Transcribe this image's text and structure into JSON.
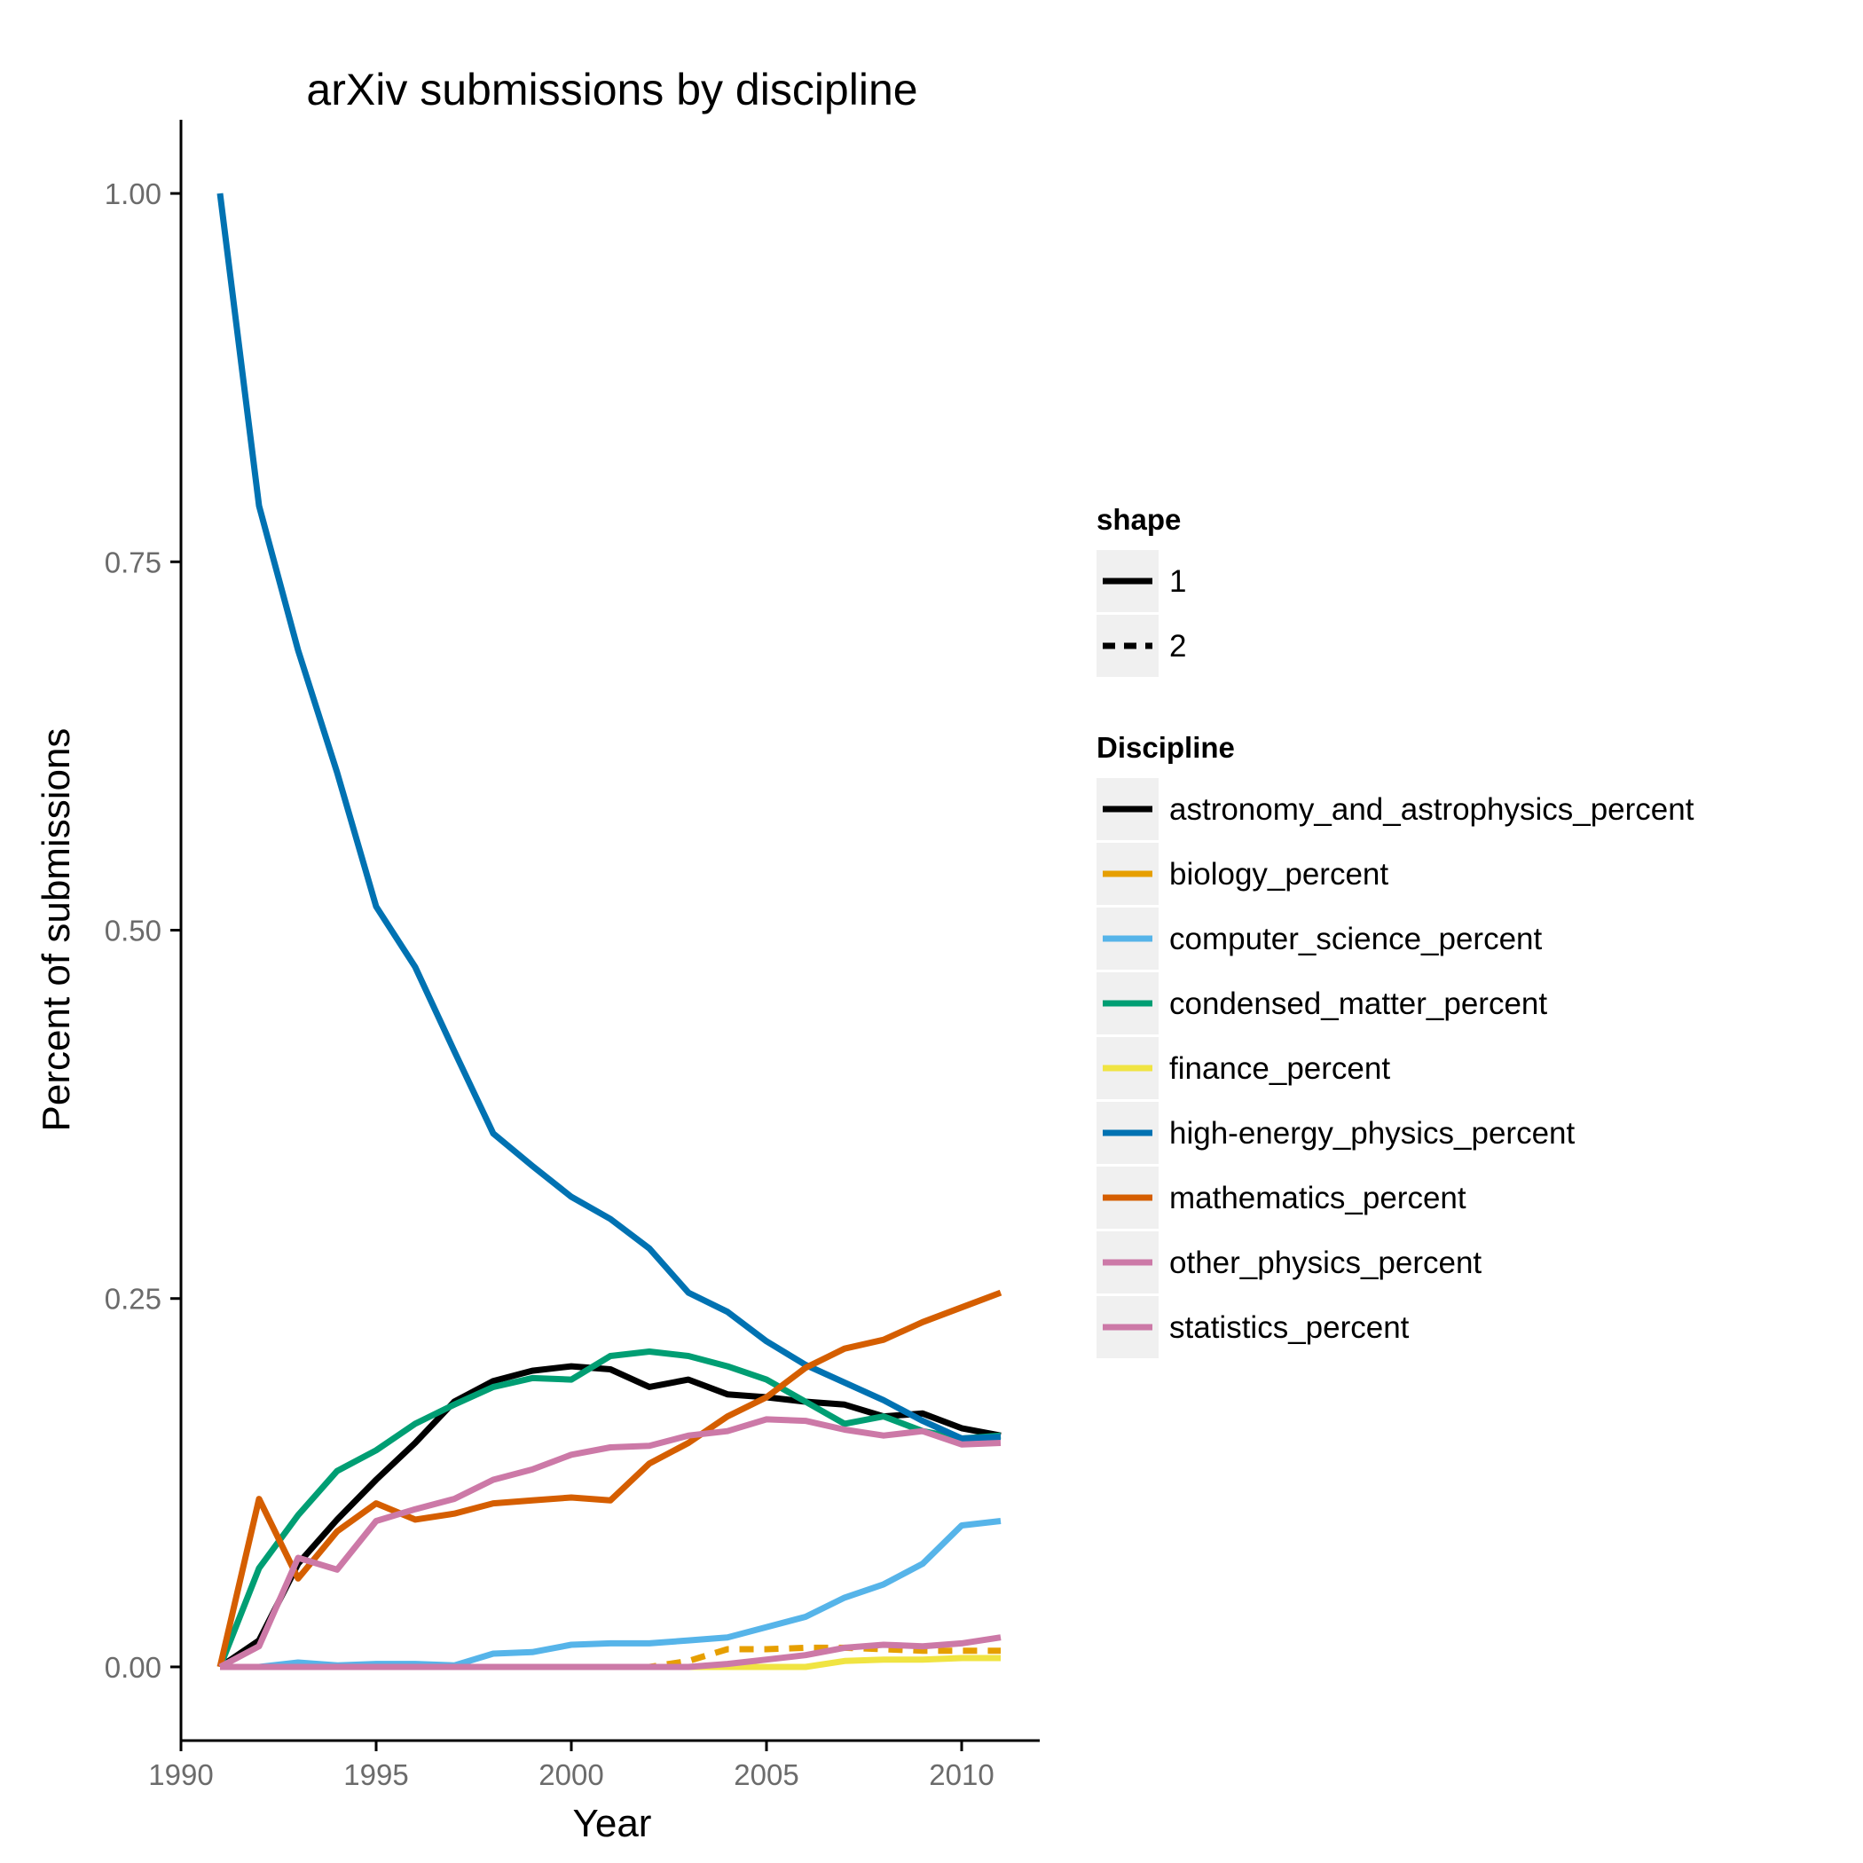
{
  "chart_data": {
    "type": "line",
    "title": "arXiv submissions by discipline",
    "xlabel": "Year",
    "ylabel": "Percent of submissions",
    "xlim": [
      1990,
      2012
    ],
    "ylim": [
      -0.05,
      1.05
    ],
    "x_ticks": [
      1990,
      1995,
      2000,
      2005,
      2010
    ],
    "x_tick_labels": [
      "1990",
      "1995",
      "2000",
      "2005",
      "2010"
    ],
    "y_ticks": [
      0,
      0.25,
      0.5,
      0.75,
      1.0
    ],
    "y_tick_labels": [
      "0.00",
      "0.25",
      "0.50",
      "0.75",
      "1.00"
    ],
    "grid": false,
    "legend_placement": "right",
    "x": [
      1991,
      1992,
      1993,
      1994,
      1995,
      1996,
      1997,
      1998,
      1999,
      2000,
      2001,
      2002,
      2003,
      2004,
      2005,
      2006,
      2007,
      2008,
      2009,
      2010,
      2011
    ],
    "shape_legend": {
      "title": "shape",
      "entries": [
        {
          "label": "1",
          "dash": "solid"
        },
        {
          "label": "2",
          "dash": "dashed"
        }
      ]
    },
    "discipline_legend_title": "Discipline",
    "series": [
      {
        "name": "astronomy_and_astrophysics_percent",
        "color": "#000000",
        "shape": "1",
        "values": [
          0.0,
          0.018,
          0.07,
          0.1,
          0.127,
          0.152,
          0.18,
          0.194,
          0.201,
          0.204,
          0.202,
          0.19,
          0.195,
          0.185,
          0.183,
          0.18,
          0.178,
          0.17,
          0.172,
          0.162,
          0.157
        ]
      },
      {
        "name": "biology_percent",
        "color": "#e69f00",
        "shape": "2",
        "values": [
          0,
          0,
          0,
          0,
          0,
          0,
          0,
          0,
          0,
          0,
          0,
          0,
          0.004,
          0.012,
          0.012,
          0.013,
          0.013,
          0.012,
          0.011,
          0.011,
          0.011
        ]
      },
      {
        "name": "computer_science_percent",
        "color": "#56b4e9",
        "shape": "1",
        "values": [
          0.0,
          0.0,
          0.003,
          0.001,
          0.002,
          0.002,
          0.001,
          0.009,
          0.01,
          0.015,
          0.016,
          0.016,
          0.018,
          0.02,
          0.027,
          0.034,
          0.047,
          0.056,
          0.07,
          0.096,
          0.099
        ]
      },
      {
        "name": "condensed_matter_percent",
        "color": "#009e73",
        "shape": "1",
        "values": [
          0.0,
          0.067,
          0.103,
          0.133,
          0.147,
          0.165,
          0.178,
          0.19,
          0.196,
          0.195,
          0.211,
          0.214,
          0.211,
          0.204,
          0.195,
          0.18,
          0.165,
          0.17,
          0.16,
          0.155,
          0.157
        ]
      },
      {
        "name": "finance_percent",
        "color": "#f0e442",
        "shape": "1",
        "values": [
          0,
          0,
          0,
          0,
          0,
          0,
          0,
          0,
          0,
          0,
          0,
          0,
          0,
          0,
          0,
          0,
          0.004,
          0.005,
          0.005,
          0.006,
          0.006
        ]
      },
      {
        "name": "high-energy_physics_percent",
        "color": "#0072b2",
        "shape": "1",
        "values": [
          1.0,
          0.788,
          0.69,
          0.607,
          0.516,
          0.475,
          0.418,
          0.362,
          0.34,
          0.319,
          0.304,
          0.284,
          0.254,
          0.241,
          0.221,
          0.205,
          0.193,
          0.181,
          0.167,
          0.155,
          0.156
        ]
      },
      {
        "name": "mathematics_percent",
        "color": "#d55e00",
        "shape": "1",
        "values": [
          0.0,
          0.114,
          0.06,
          0.092,
          0.111,
          0.1,
          0.104,
          0.111,
          0.113,
          0.115,
          0.113,
          0.138,
          0.152,
          0.17,
          0.183,
          0.203,
          0.216,
          0.222,
          0.234,
          0.244,
          0.254
        ]
      },
      {
        "name": "other_physics_percent",
        "color": "#cc79a7",
        "shape": "1",
        "values": [
          0.0,
          0.014,
          0.074,
          0.066,
          0.099,
          0.107,
          0.114,
          0.127,
          0.134,
          0.144,
          0.149,
          0.15,
          0.157,
          0.16,
          0.168,
          0.167,
          0.161,
          0.157,
          0.16,
          0.151,
          0.152
        ]
      },
      {
        "name": "statistics_percent",
        "color": "#cc79a7",
        "shape": "1",
        "values": [
          0,
          0,
          0,
          0,
          0,
          0,
          0,
          0,
          0,
          0,
          0,
          0,
          0,
          0.002,
          0.005,
          0.008,
          0.013,
          0.015,
          0.014,
          0.016,
          0.02
        ]
      }
    ]
  }
}
